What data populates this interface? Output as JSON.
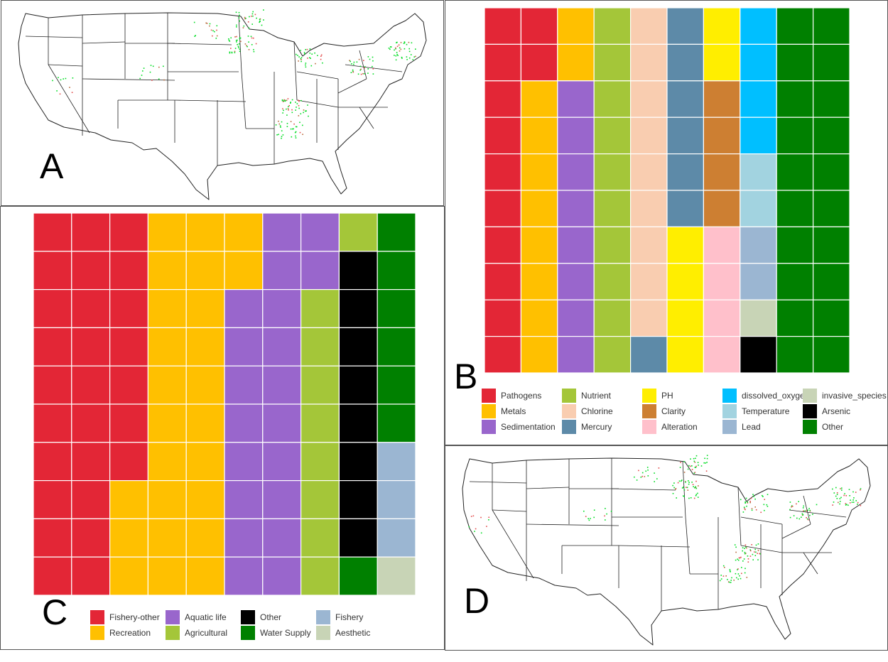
{
  "panels": {
    "a": {
      "letter": "A"
    },
    "b": {
      "letter": "B"
    },
    "c": {
      "letter": "C"
    },
    "d": {
      "letter": "D"
    }
  },
  "map_style": {
    "state_border_color": "#222222",
    "impaired_color": "#00dd22",
    "secondary_color": "#e24a4a",
    "tertiary_color": "#b86a3a"
  },
  "chart_data": [
    {
      "type": "waffle",
      "panel": "B",
      "rows": 10,
      "cols": 10,
      "fill_order": "column-major, top-to-bottom, left-to-right",
      "categories": [
        {
          "name": "Pathogens",
          "color": "#e32636",
          "count": 12
        },
        {
          "name": "Metals",
          "color": "#ffc000",
          "count": 10
        },
        {
          "name": "Sedimentation",
          "color": "#9966cc",
          "count": 8
        },
        {
          "name": "Nutrient",
          "color": "#a4c639",
          "count": 10
        },
        {
          "name": "Chlorine",
          "color": "#f9cdb0",
          "count": 9
        },
        {
          "name": "Mercury",
          "color": "#5d8aa8",
          "count": 7
        },
        {
          "name": "PH",
          "color": "#ffee00",
          "count": 6
        },
        {
          "name": "Clarity",
          "color": "#cd7f32",
          "count": 4
        },
        {
          "name": "Alteration",
          "color": "#ffc0cb",
          "count": 4
        },
        {
          "name": "dissolved_oxygen",
          "color": "#00bfff",
          "count": 4
        },
        {
          "name": "Temperature",
          "color": "#a2d3e0",
          "count": 2
        },
        {
          "name": "Lead",
          "color": "#9bb6d2",
          "count": 2
        },
        {
          "name": "invasive_species",
          "color": "#c8d4b6",
          "count": 1
        },
        {
          "name": "Arsenic",
          "color": "#000000",
          "count": 1
        },
        {
          "name": "Other",
          "color": "#008000",
          "count": 20
        }
      ],
      "legend": {
        "placement": "bottom",
        "columns": 5
      }
    },
    {
      "type": "waffle",
      "panel": "C",
      "rows": 10,
      "cols": 10,
      "fill_order": "column-major, top-to-bottom, left-to-right",
      "categories": [
        {
          "name": "Fishery-other",
          "color": "#e32636",
          "count": 27
        },
        {
          "name": "Recreation",
          "color": "#ffc000",
          "count": 25
        },
        {
          "name": "Aquatic life",
          "color": "#9966cc",
          "count": 20
        },
        {
          "name": "Agricultural",
          "color": "#a4c639",
          "count": 9
        },
        {
          "name": "Other",
          "color": "#000000",
          "count": 8
        },
        {
          "name": "Water Supply",
          "color": "#008000",
          "count": 7
        },
        {
          "name": "Fishery",
          "color": "#9bb6d2",
          "count": 3
        },
        {
          "name": "Aesthetic",
          "color": "#c8d4b6",
          "count": 1
        }
      ],
      "legend": {
        "placement": "bottom",
        "columns": 4
      }
    }
  ]
}
